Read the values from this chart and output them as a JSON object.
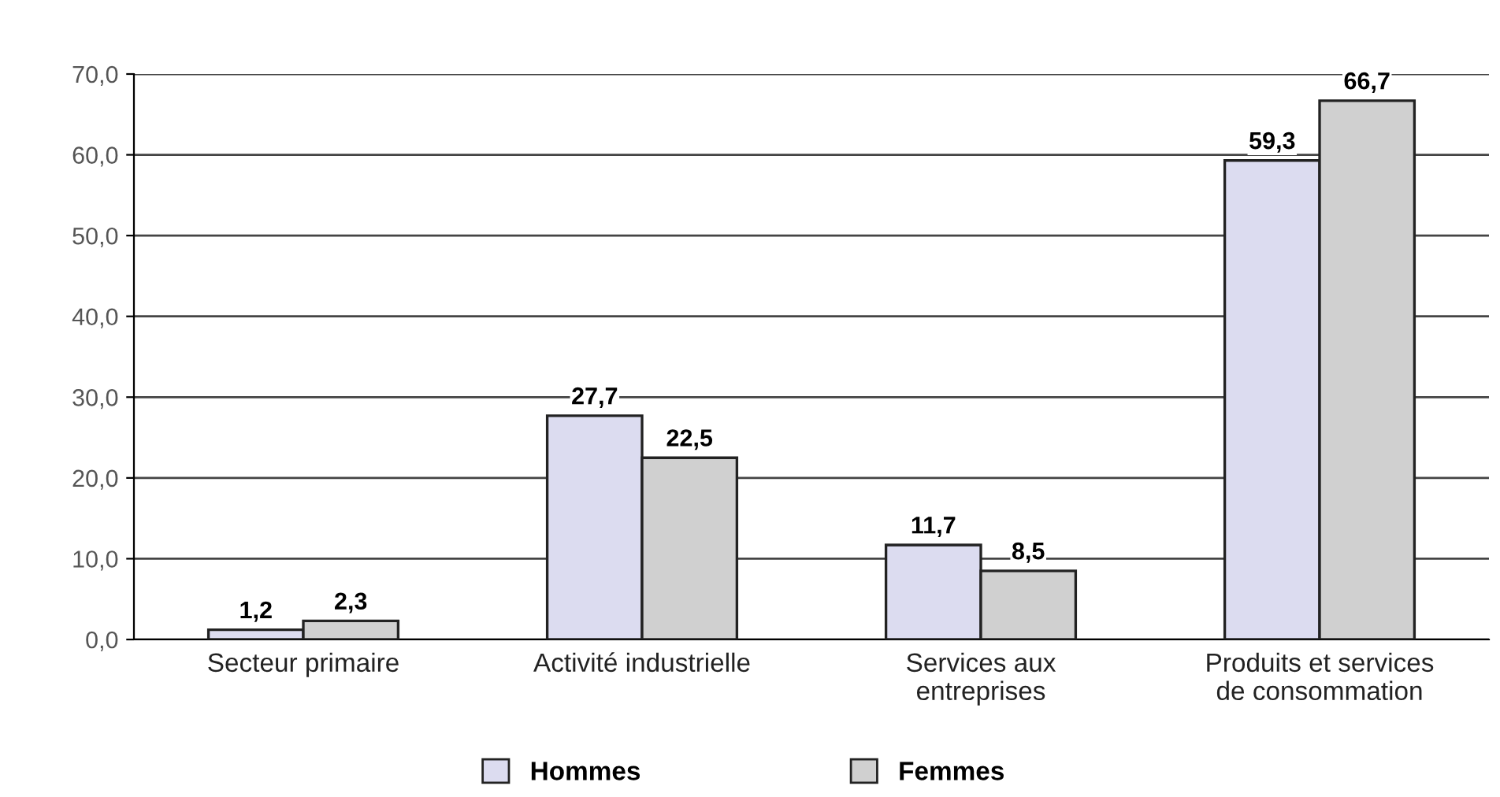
{
  "chart_data": {
    "type": "bar",
    "categories": [
      "Secteur primaire",
      "Activité industrielle",
      "Services aux\nentreprises",
      "Produits et services\nde consommation"
    ],
    "series": [
      {
        "name": "Hommes",
        "color": "#dcdcf0",
        "values": [
          1.2,
          27.7,
          11.7,
          59.3
        ],
        "value_labels": [
          "1,2",
          "27,7",
          "11,7",
          "59,3"
        ]
      },
      {
        "name": "Femmes",
        "color": "#d0d0d0",
        "values": [
          2.3,
          22.5,
          8.5,
          66.7
        ],
        "value_labels": [
          "2,3",
          "22,5",
          "8,5",
          "66,7"
        ]
      }
    ],
    "ylim": [
      0,
      70
    ],
    "yticks": [
      {
        "value": 0,
        "label": "0,0"
      },
      {
        "value": 10,
        "label": "10,0"
      },
      {
        "value": 20,
        "label": "20,0"
      },
      {
        "value": 30,
        "label": "30,0"
      },
      {
        "value": 40,
        "label": "40,0"
      },
      {
        "value": 50,
        "label": "50,0"
      },
      {
        "value": 60,
        "label": "60,0"
      },
      {
        "value": 70,
        "label": "70,0"
      }
    ],
    "grid": "y",
    "legend": "bottom"
  }
}
